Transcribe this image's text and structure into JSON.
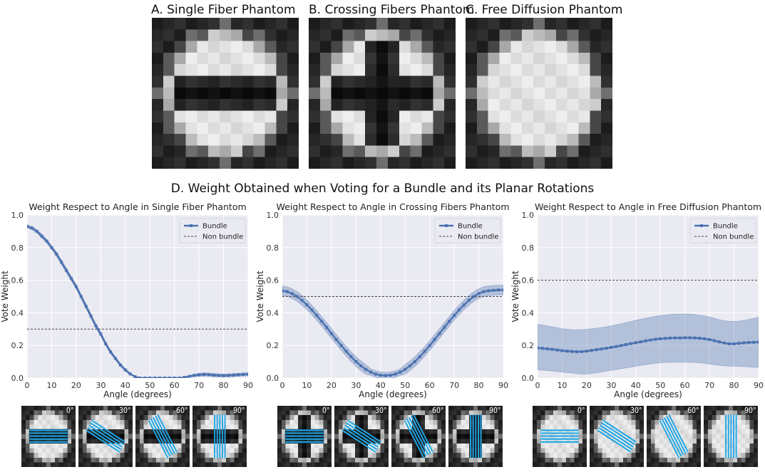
{
  "phantoms": [
    {
      "title": "A. Single Fiber Phantom",
      "kind": "single"
    },
    {
      "title": "B. Crossing Fibers Phantom",
      "kind": "crossing"
    },
    {
      "title": "C. Free Diffusion Phantom",
      "kind": "free"
    }
  ],
  "section_d_title": "D. Weight Obtained when Voting for a Bundle and its Planar Rotations",
  "colors": {
    "bundle": "#4c72b0",
    "band": "#9fb0d6",
    "nonbundle": "#444444",
    "plot_bg": "#eaeaf2",
    "fiber": "#1ea6e6"
  },
  "chart_data": [
    {
      "type": "line",
      "title": "Weight Respect to Angle in Single Fiber Phantom",
      "xlabel": "Angle (degrees)",
      "ylabel": "Vote Weight",
      "xlim": [
        0,
        90
      ],
      "ylim": [
        0,
        1.0
      ],
      "xticks": [
        0,
        10,
        20,
        30,
        40,
        50,
        60,
        70,
        80,
        90
      ],
      "yticks": [
        0.0,
        0.2,
        0.4,
        0.6,
        0.8,
        1.0
      ],
      "grid": true,
      "legend": "top-right",
      "series": [
        {
          "name": "Bundle",
          "kind": "line-markers",
          "x": [
            0,
            2,
            4,
            6,
            8,
            10,
            12,
            14,
            16,
            18,
            20,
            22,
            24,
            26,
            28,
            30,
            32,
            34,
            36,
            38,
            40,
            42,
            44,
            46,
            48,
            50,
            52,
            54,
            56,
            58,
            60,
            62,
            64,
            66,
            68,
            70,
            72,
            74,
            76,
            78,
            80,
            82,
            84,
            86,
            88,
            90
          ],
          "y": [
            0.93,
            0.92,
            0.9,
            0.87,
            0.84,
            0.8,
            0.76,
            0.71,
            0.66,
            0.61,
            0.56,
            0.5,
            0.44,
            0.38,
            0.32,
            0.27,
            0.21,
            0.16,
            0.12,
            0.08,
            0.05,
            0.025,
            0.008,
            0.0,
            0.0,
            0.0,
            0.0,
            0.0,
            0.0,
            0.0,
            0.0,
            0.0,
            0.004,
            0.01,
            0.016,
            0.02,
            0.022,
            0.021,
            0.018,
            0.016,
            0.015,
            0.016,
            0.018,
            0.02,
            0.022,
            0.023
          ],
          "band": [
            0.01,
            0.01,
            0.01,
            0.012,
            0.012,
            0.012,
            0.014,
            0.014,
            0.014,
            0.014,
            0.014,
            0.014,
            0.014,
            0.014,
            0.014,
            0.014,
            0.012,
            0.012,
            0.01,
            0.01,
            0.008,
            0.006,
            0.004,
            0.0,
            0.0,
            0.0,
            0.0,
            0.0,
            0.0,
            0.0,
            0.0,
            0.0,
            0.004,
            0.006,
            0.008,
            0.01,
            0.01,
            0.01,
            0.01,
            0.01,
            0.01,
            0.01,
            0.01,
            0.01,
            0.01,
            0.01
          ]
        },
        {
          "name": "Non bundle",
          "kind": "dashed",
          "value": 0.3
        }
      ]
    },
    {
      "type": "line",
      "title": "Weight Respect to Angle in Crossing Fibers Phantom",
      "xlabel": "Angle (degrees)",
      "ylabel": "Vote Weight",
      "xlim": [
        0,
        90
      ],
      "ylim": [
        0,
        1.0
      ],
      "xticks": [
        0,
        10,
        20,
        30,
        40,
        50,
        60,
        70,
        80,
        90
      ],
      "yticks": [
        0.0,
        0.2,
        0.4,
        0.6,
        0.8,
        1.0
      ],
      "grid": true,
      "legend": "top-right",
      "series": [
        {
          "name": "Bundle",
          "kind": "line-markers",
          "x": [
            0,
            2,
            4,
            6,
            8,
            10,
            12,
            14,
            16,
            18,
            20,
            22,
            24,
            26,
            28,
            30,
            32,
            34,
            36,
            38,
            40,
            42,
            44,
            46,
            48,
            50,
            52,
            54,
            56,
            58,
            60,
            62,
            64,
            66,
            68,
            70,
            72,
            74,
            76,
            78,
            80,
            82,
            84,
            86,
            88,
            90
          ],
          "y": [
            0.535,
            0.53,
            0.518,
            0.5,
            0.477,
            0.449,
            0.418,
            0.384,
            0.348,
            0.311,
            0.273,
            0.236,
            0.199,
            0.164,
            0.131,
            0.101,
            0.075,
            0.053,
            0.036,
            0.024,
            0.017,
            0.015,
            0.017,
            0.024,
            0.036,
            0.053,
            0.075,
            0.101,
            0.131,
            0.164,
            0.199,
            0.236,
            0.273,
            0.311,
            0.348,
            0.384,
            0.418,
            0.449,
            0.477,
            0.5,
            0.518,
            0.53,
            0.535,
            0.538,
            0.54,
            0.54
          ],
          "band": [
            0.03,
            0.03,
            0.03,
            0.03,
            0.03,
            0.03,
            0.03,
            0.03,
            0.03,
            0.03,
            0.03,
            0.03,
            0.03,
            0.03,
            0.03,
            0.03,
            0.03,
            0.03,
            0.02,
            0.02,
            0.02,
            0.02,
            0.02,
            0.02,
            0.02,
            0.03,
            0.03,
            0.03,
            0.03,
            0.03,
            0.03,
            0.03,
            0.03,
            0.03,
            0.03,
            0.03,
            0.03,
            0.03,
            0.03,
            0.03,
            0.03,
            0.03,
            0.03,
            0.03,
            0.03,
            0.03
          ]
        },
        {
          "name": "Non bundle",
          "kind": "dashed",
          "value": 0.5
        }
      ]
    },
    {
      "type": "line",
      "title": "Weight Respect to Angle in Free Diffusion Phantom",
      "xlabel": "Angle (degrees)",
      "ylabel": "Vote Weight",
      "xlim": [
        0,
        90
      ],
      "ylim": [
        0,
        1.0
      ],
      "xticks": [
        0,
        10,
        20,
        30,
        40,
        50,
        60,
        70,
        80,
        90
      ],
      "yticks": [
        0.0,
        0.2,
        0.4,
        0.6,
        0.8,
        1.0
      ],
      "grid": true,
      "legend": "top-right",
      "series": [
        {
          "name": "Bundle",
          "kind": "line-markers",
          "x": [
            0,
            2,
            4,
            6,
            8,
            10,
            12,
            14,
            16,
            18,
            20,
            22,
            24,
            26,
            28,
            30,
            32,
            34,
            36,
            38,
            40,
            42,
            44,
            46,
            48,
            50,
            52,
            54,
            56,
            58,
            60,
            62,
            64,
            66,
            68,
            70,
            72,
            74,
            76,
            78,
            80,
            82,
            84,
            86,
            88,
            90
          ],
          "y": [
            0.185,
            0.182,
            0.179,
            0.176,
            0.172,
            0.168,
            0.165,
            0.163,
            0.161,
            0.162,
            0.165,
            0.169,
            0.174,
            0.178,
            0.183,
            0.188,
            0.193,
            0.199,
            0.205,
            0.211,
            0.217,
            0.222,
            0.228,
            0.233,
            0.238,
            0.241,
            0.243,
            0.245,
            0.246,
            0.246,
            0.247,
            0.247,
            0.246,
            0.244,
            0.241,
            0.236,
            0.229,
            0.222,
            0.215,
            0.21,
            0.21,
            0.213,
            0.216,
            0.218,
            0.219,
            0.22
          ],
          "band_lo": [
            0.05,
            0.048,
            0.046,
            0.043,
            0.04,
            0.037,
            0.033,
            0.03,
            0.027,
            0.025,
            0.025,
            0.028,
            0.032,
            0.037,
            0.042,
            0.047,
            0.052,
            0.057,
            0.062,
            0.067,
            0.072,
            0.077,
            0.082,
            0.086,
            0.09,
            0.093,
            0.095,
            0.096,
            0.097,
            0.097,
            0.097,
            0.096,
            0.095,
            0.093,
            0.09,
            0.086,
            0.082,
            0.078,
            0.075,
            0.073,
            0.072,
            0.071,
            0.07,
            0.068,
            0.066,
            0.065
          ],
          "band_hi": [
            0.33,
            0.325,
            0.32,
            0.314,
            0.308,
            0.303,
            0.299,
            0.297,
            0.296,
            0.297,
            0.299,
            0.302,
            0.306,
            0.31,
            0.315,
            0.32,
            0.326,
            0.333,
            0.34,
            0.347,
            0.354,
            0.361,
            0.367,
            0.373,
            0.378,
            0.383,
            0.387,
            0.39,
            0.392,
            0.393,
            0.393,
            0.392,
            0.39,
            0.386,
            0.381,
            0.374,
            0.366,
            0.358,
            0.352,
            0.348,
            0.347,
            0.349,
            0.353,
            0.359,
            0.366,
            0.373
          ]
        },
        {
          "name": "Non bundle",
          "kind": "dashed",
          "value": 0.6
        }
      ]
    }
  ],
  "thumbnail_angles": [
    "0°",
    "30°",
    "60°",
    "90°"
  ]
}
